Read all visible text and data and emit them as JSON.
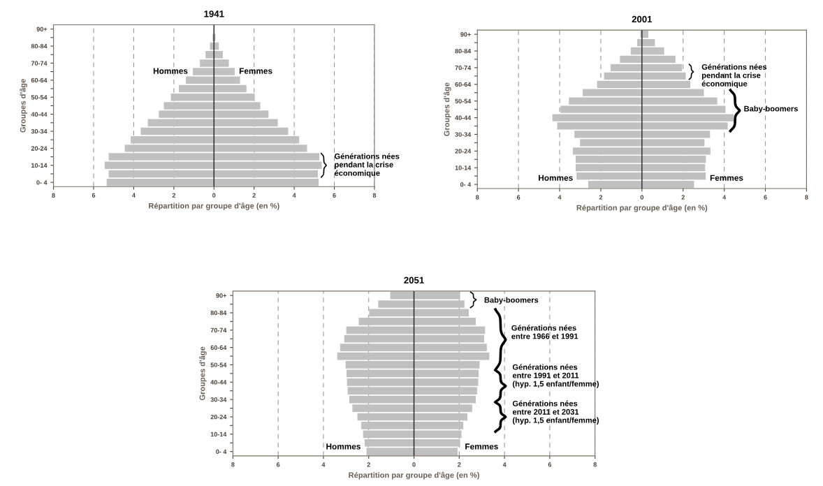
{
  "chart_data": [
    {
      "type": "bar",
      "orientation": "horizontal",
      "stacked": true,
      "title": "1941",
      "xlabel": "Répartition par groupe d'âge (en %)",
      "ylabel": "Groupes d'âge",
      "categories": [
        "90+",
        null,
        "80-84",
        null,
        "70-74",
        null,
        "60-64",
        null,
        "50-54",
        null,
        "40-44",
        null,
        "30-34",
        null,
        "20-24",
        null,
        "10-14",
        null,
        "0- 4"
      ],
      "series": [
        {
          "name": "Hommes",
          "color": "#c0c0c0",
          "values": [
            null,
            -0.07,
            -0.2,
            -0.42,
            -0.7,
            -1.05,
            -1.4,
            -1.75,
            -2.15,
            -2.5,
            -2.75,
            -3.3,
            -3.65,
            -4.15,
            -4.45,
            -5.25,
            -5.45,
            -5.25,
            -5.35
          ]
        },
        {
          "name": "Femmes",
          "color": "#c0c0c0",
          "values": [
            0.02,
            0.08,
            0.24,
            0.44,
            0.74,
            1.03,
            1.3,
            1.62,
            2.03,
            2.31,
            2.72,
            3.18,
            3.7,
            4.25,
            4.64,
            5.25,
            5.37,
            5.18,
            5.22
          ]
        }
      ],
      "xlim": [
        -8,
        8
      ],
      "xticks": [
        {
          "value": -8,
          "label": "8"
        },
        {
          "value": -6,
          "label": "6"
        },
        {
          "value": -4,
          "label": "4"
        },
        {
          "value": -2,
          "label": "2"
        },
        0,
        2,
        4,
        6,
        8
      ],
      "grid": "x",
      "annotations": [
        "Générations nées\npendant la crise\néconomique"
      ]
    },
    {
      "type": "bar",
      "orientation": "horizontal",
      "stacked": true,
      "title": "2001",
      "xlabel": "Répartition par groupe d'âge (en %)",
      "ylabel": "Groupes d'âge",
      "categories": [
        "90+",
        null,
        "80-84",
        null,
        "70-74",
        null,
        "60-64",
        null,
        "50-54",
        null,
        "40-44",
        null,
        "30-34",
        null,
        "20-24",
        null,
        "10-14",
        null,
        "0- 4"
      ],
      "series": [
        {
          "name": "Hommes",
          "color": "#c0c0c0",
          "values": [
            -0.08,
            -0.23,
            -0.54,
            -1.07,
            -1.52,
            -1.84,
            -2.18,
            -2.88,
            -3.55,
            -3.96,
            -4.35,
            -4.12,
            -3.28,
            -3.01,
            -3.36,
            -3.22,
            -3.22,
            -3.18,
            -2.61
          ]
        },
        {
          "name": "Femmes",
          "color": "#c0c0c0",
          "values": [
            0.31,
            0.63,
            1.08,
            1.63,
            1.95,
            2.13,
            2.35,
            3.01,
            3.66,
            4.06,
            4.46,
            4.17,
            3.31,
            3.04,
            3.33,
            3.11,
            3.07,
            3.1,
            2.53
          ]
        }
      ],
      "xlim": [
        -8,
        8
      ],
      "xticks": [
        {
          "value": -8,
          "label": "8"
        },
        {
          "value": -6,
          "label": "6"
        },
        {
          "value": -4,
          "label": "4"
        },
        {
          "value": -2,
          "label": "2"
        },
        0,
        2,
        4,
        6,
        8
      ],
      "grid": "x",
      "annotations": [
        "Générations nées\npendant la crise\néconomique",
        "Baby-boomers"
      ]
    },
    {
      "type": "bar",
      "orientation": "horizontal",
      "stacked": true,
      "title": "2051",
      "xlabel": "Répartition par groupe d'âge (en %)",
      "ylabel": "Groupes d'âge",
      "categories": [
        "90+",
        null,
        "80-84",
        null,
        "70-74",
        null,
        "60-64",
        null,
        "50-54",
        null,
        "40-44",
        null,
        "30-34",
        null,
        "20-24",
        null,
        "10-14",
        null,
        "0- 4"
      ],
      "series": [
        {
          "name": "Hommes",
          "color": "#c0c0c0",
          "values": [
            -1.05,
            -1.58,
            -1.98,
            -2.44,
            -2.99,
            -3.08,
            -3.26,
            -3.39,
            -3.02,
            -2.98,
            -2.96,
            -2.93,
            -2.86,
            -2.72,
            -2.5,
            -2.33,
            -2.25,
            -2.18,
            -2.1
          ]
        },
        {
          "name": "Femmes",
          "color": "#c0c0c0",
          "values": [
            2.04,
            2.23,
            2.42,
            2.73,
            3.14,
            3.1,
            3.22,
            3.33,
            2.9,
            2.86,
            2.84,
            2.79,
            2.73,
            2.57,
            2.36,
            2.18,
            2.1,
            2.04,
            1.93
          ]
        }
      ],
      "xlim": [
        -8,
        8
      ],
      "xticks": [
        {
          "value": -8,
          "label": "8"
        },
        {
          "value": -6,
          "label": "6"
        },
        {
          "value": -4,
          "label": "4"
        },
        {
          "value": -2,
          "label": "2"
        },
        0,
        2,
        4,
        6,
        8
      ],
      "grid": "x",
      "annotations": [
        "Baby-boomers",
        "Générations nées\nentre 1966 et 1991",
        "Générations nées\nentre 1991 et 2011\n(hyp. 1,5 enfant/femme)",
        "Générations nées\nentre 2011 et 2031\n(hyp. 1,5 enfant/femme)"
      ]
    }
  ]
}
